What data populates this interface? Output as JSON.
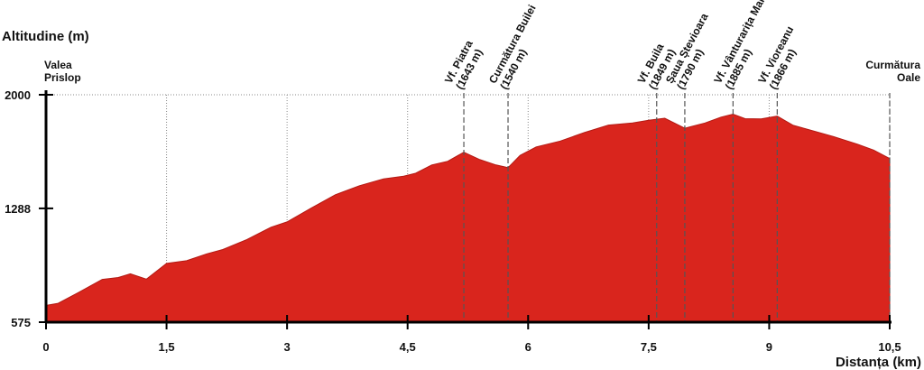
{
  "chart_data": {
    "type": "area",
    "ylabel": "Altitudine (m)",
    "xlabel": "Distanța (km)",
    "xlim": [
      0,
      10.5
    ],
    "ylim": [
      575,
      2000
    ],
    "x_ticks": [
      "0",
      "1,5",
      "3",
      "4,5",
      "6",
      "7,5",
      "9",
      "10,5"
    ],
    "y_ticks": [
      "575",
      "1288",
      "2000"
    ],
    "grid": "dotted vertical",
    "fill_color": "#d9251d",
    "endpoints": [
      {
        "lines": [
          "Valea",
          "Prislop"
        ],
        "x": 0,
        "align": "left"
      },
      {
        "lines": [
          "Curmătura",
          "Oale"
        ],
        "x": 10.5,
        "align": "right"
      }
    ],
    "waypoints": [
      {
        "name": "Vf. Piatra",
        "elev": "(1643 m)",
        "x": 5.2
      },
      {
        "name": "Curmătura Builei",
        "elev": "(1540 m)",
        "x": 5.75
      },
      {
        "name": "Vf. Buila",
        "elev": "(1849 m)",
        "x": 7.6
      },
      {
        "name": "Șaua Ștevioara",
        "elev": "(1790 m)",
        "x": 7.95
      },
      {
        "name": "Vf. Vânturarița Mare",
        "elev": "(1885 m)",
        "x": 8.55
      },
      {
        "name": "Vf. Vioreanu",
        "elev": "(1866 m)",
        "x": 9.1
      }
    ],
    "x": [
      0,
      0.15,
      0.4,
      0.7,
      0.9,
      1.05,
      1.25,
      1.5,
      1.75,
      2.0,
      2.2,
      2.5,
      2.8,
      3.0,
      3.3,
      3.6,
      3.9,
      4.2,
      4.45,
      4.6,
      4.8,
      5.0,
      5.2,
      5.4,
      5.6,
      5.75,
      5.9,
      6.1,
      6.4,
      6.7,
      7.0,
      7.3,
      7.5,
      7.7,
      7.95,
      8.2,
      8.4,
      8.55,
      8.7,
      8.9,
      9.1,
      9.3,
      9.5,
      9.8,
      10.1,
      10.3,
      10.5
    ],
    "altitude": [
      680,
      700,
      760,
      850,
      855,
      885,
      845,
      950,
      960,
      1010,
      1030,
      1100,
      1170,
      1210,
      1290,
      1380,
      1430,
      1480,
      1490,
      1515,
      1560,
      1590,
      1640,
      1600,
      1560,
      1550,
      1620,
      1680,
      1710,
      1770,
      1810,
      1830,
      1840,
      1860,
      1790,
      1830,
      1860,
      1885,
      1850,
      1855,
      1866,
      1815,
      1780,
      1745,
      1690,
      1660,
      1600
    ]
  }
}
